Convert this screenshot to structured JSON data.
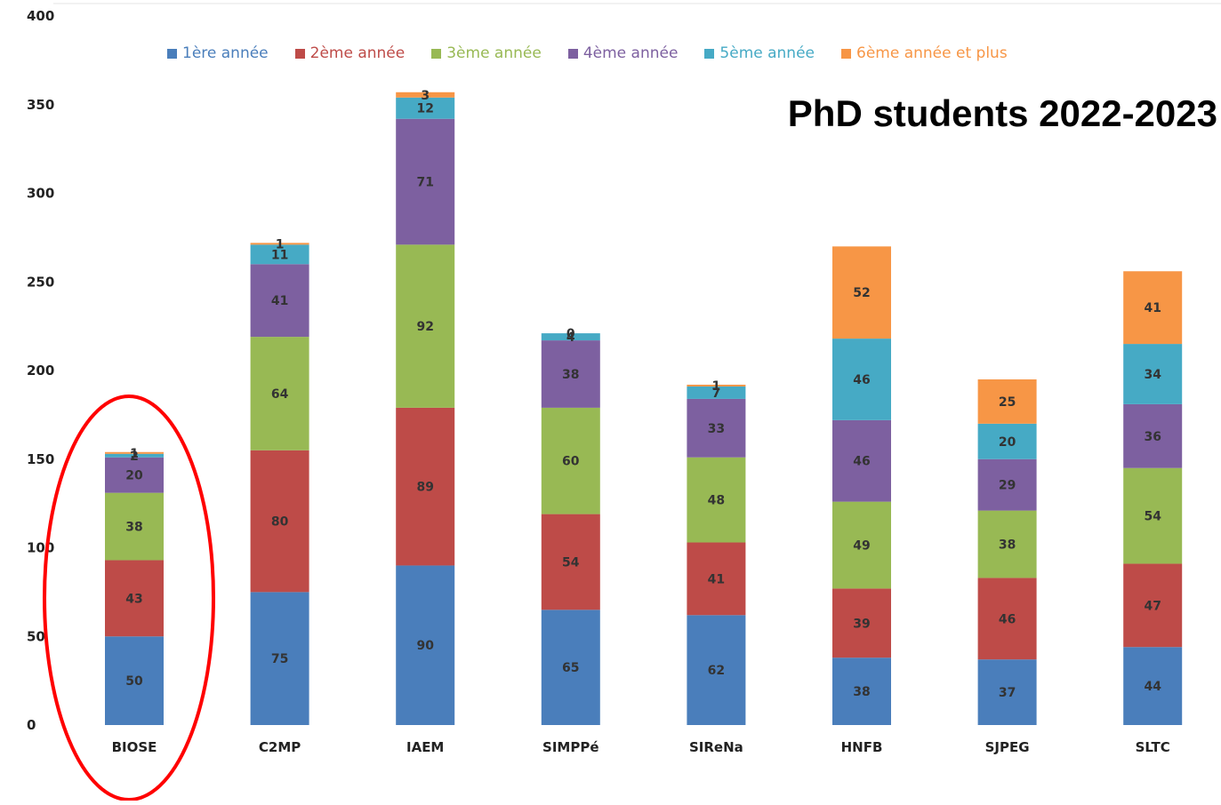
{
  "chart_data": {
    "type": "bar",
    "stacked": true,
    "title": "PhD students 2022-2023",
    "categories": [
      "BIOSE",
      "C2MP",
      "IAEM",
      "SIMPPé",
      "SIReNa",
      "HNFB",
      "SJPEG",
      "SLTC"
    ],
    "ylim": [
      0,
      400
    ],
    "yticks": [
      0,
      50,
      100,
      150,
      200,
      250,
      300,
      350,
      400
    ],
    "series": [
      {
        "name": "1ère année",
        "color": "#4a7ebb",
        "values": [
          50,
          75,
          90,
          65,
          62,
          38,
          37,
          44
        ]
      },
      {
        "name": "2ème année",
        "color": "#be4b48",
        "values": [
          43,
          80,
          89,
          54,
          41,
          39,
          46,
          47
        ]
      },
      {
        "name": "3ème année",
        "color": "#98b954",
        "values": [
          38,
          64,
          92,
          60,
          48,
          49,
          38,
          54
        ]
      },
      {
        "name": "4ème année",
        "color": "#7d60a0",
        "values": [
          20,
          41,
          71,
          38,
          33,
          46,
          29,
          36
        ]
      },
      {
        "name": "5ème année",
        "color": "#46aac5",
        "values": [
          2,
          11,
          12,
          4,
          7,
          46,
          20,
          34
        ]
      },
      {
        "name": "6ème année et plus",
        "color": "#f79646",
        "values": [
          1,
          1,
          3,
          0,
          1,
          52,
          25,
          41
        ]
      }
    ],
    "highlight": {
      "category": "BIOSE",
      "shape": "ellipse",
      "color": "#ff0000"
    },
    "legend_position": "top",
    "grid": false
  }
}
